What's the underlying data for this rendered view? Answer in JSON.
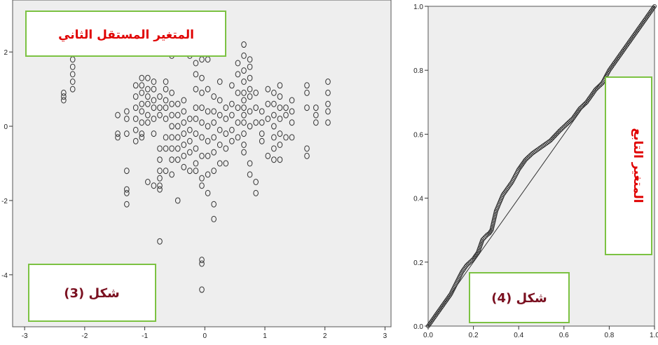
{
  "chart_data": [
    {
      "type": "scatter",
      "caption": "شكل (3)",
      "annotation": "المتغير المستقل الثاني",
      "xlim": [
        -3.2,
        3.1
      ],
      "ylim": [
        -5.4,
        3.4
      ],
      "xticks": [
        "-3",
        "-2",
        "-1",
        "0",
        "1",
        "2",
        "3"
      ],
      "yticks": [
        "2",
        "0",
        "-2",
        "-4"
      ],
      "xtick_values": [
        -3,
        -2,
        -1,
        0,
        1,
        2,
        3
      ],
      "ytick_values": [
        2,
        0,
        -2,
        -4
      ],
      "grid": false,
      "columns": [
        {
          "x": -2.35,
          "y": [
            0.9,
            0.8,
            0.7
          ]
        },
        {
          "x": -2.2,
          "y": [
            2.0,
            1.8,
            1.6,
            1.4,
            1.2,
            1.0
          ]
        },
        {
          "x": -1.45,
          "y": [
            0.3,
            -0.2,
            -0.3
          ]
        },
        {
          "x": -1.3,
          "y": [
            0.4,
            0.2,
            -0.2,
            -1.2,
            -1.7,
            -1.8,
            -2.1
          ]
        },
        {
          "x": -1.15,
          "y": [
            1.1,
            0.8,
            0.5,
            0.2,
            -0.1,
            -0.4
          ]
        },
        {
          "x": -1.05,
          "y": [
            1.3,
            1.1,
            0.9,
            0.6,
            0.4,
            0.1,
            -0.2,
            -0.3
          ]
        },
        {
          "x": -0.95,
          "y": [
            1.3,
            1.0,
            0.8,
            0.6,
            0.3,
            0.1,
            -1.5
          ]
        },
        {
          "x": -0.85,
          "y": [
            1.2,
            1.0,
            0.7,
            0.5,
            0.2,
            -0.2,
            -1.6
          ]
        },
        {
          "x": -0.75,
          "y": [
            0.8,
            0.5,
            0.3,
            -0.6,
            -0.9,
            -1.2,
            -1.4,
            -1.6,
            -1.7,
            -3.1
          ]
        },
        {
          "x": -0.65,
          "y": [
            1.2,
            1.0,
            0.7,
            0.5,
            0.2,
            -0.3,
            -0.6,
            -1.2
          ]
        },
        {
          "x": -0.55,
          "y": [
            1.9,
            0.9,
            0.6,
            0.3,
            0.0,
            -0.3,
            -0.6,
            -0.9,
            -1.3
          ]
        },
        {
          "x": -0.45,
          "y": [
            0.6,
            0.3,
            0.0,
            -0.3,
            -0.6,
            -0.9,
            -2.0
          ]
        },
        {
          "x": -0.35,
          "y": [
            0.7,
            0.4,
            0.1,
            -0.2,
            -0.5,
            -0.8,
            -1.1
          ]
        },
        {
          "x": -0.25,
          "y": [
            2.2,
            1.9,
            0.2,
            -0.1,
            -0.4,
            -0.7,
            -1.2
          ]
        },
        {
          "x": -0.15,
          "y": [
            1.7,
            1.4,
            1.0,
            0.5,
            0.2,
            -0.2,
            -0.6,
            -1.0,
            -1.2
          ]
        },
        {
          "x": -0.05,
          "y": [
            1.8,
            1.3,
            0.9,
            0.5,
            0.1,
            -0.3,
            -0.8,
            -1.4,
            -1.6,
            -3.6,
            -3.7,
            -4.4
          ]
        },
        {
          "x": 0.05,
          "y": [
            1.8,
            1.0,
            0.4,
            0.0,
            -0.4,
            -0.8,
            -1.3,
            -1.8
          ]
        },
        {
          "x": 0.15,
          "y": [
            0.8,
            0.4,
            0.1,
            -0.3,
            -0.7,
            -1.2,
            -2.1,
            -2.5
          ]
        },
        {
          "x": 0.25,
          "y": [
            1.2,
            0.7,
            0.3,
            -0.1,
            -0.5,
            -1.0
          ]
        },
        {
          "x": 0.35,
          "y": [
            0.5,
            0.2,
            -0.2,
            -0.6,
            -1.0
          ]
        },
        {
          "x": 0.45,
          "y": [
            1.1,
            0.6,
            0.3,
            -0.1,
            -0.4
          ]
        },
        {
          "x": 0.55,
          "y": [
            1.7,
            1.4,
            0.9,
            0.5,
            0.1,
            -0.3
          ]
        },
        {
          "x": 0.65,
          "y": [
            2.2,
            1.9,
            1.5,
            1.2,
            0.9,
            0.7,
            0.5,
            0.3,
            0.1,
            -0.2,
            -0.5,
            -0.7
          ]
        },
        {
          "x": 0.75,
          "y": [
            1.8,
            1.6,
            1.3,
            1.0,
            0.8,
            0.4,
            0.0,
            -1.0,
            -1.3
          ]
        },
        {
          "x": 0.85,
          "y": [
            0.9,
            0.5,
            0.1,
            -1.5,
            -1.8
          ]
        },
        {
          "x": 0.95,
          "y": [
            0.4,
            0.1,
            -0.2,
            -0.4
          ]
        },
        {
          "x": 1.05,
          "y": [
            1.0,
            0.6,
            0.2,
            -0.8
          ]
        },
        {
          "x": 1.15,
          "y": [
            0.9,
            0.6,
            0.3,
            0.0,
            -0.3,
            -0.6,
            -0.9
          ]
        },
        {
          "x": 1.25,
          "y": [
            1.1,
            0.8,
            0.5,
            0.2,
            -0.2,
            -0.5,
            -0.9
          ]
        },
        {
          "x": 1.35,
          "y": [
            0.5,
            0.3,
            -0.3
          ]
        },
        {
          "x": 1.45,
          "y": [
            0.7,
            0.4,
            0.1,
            -0.3
          ]
        },
        {
          "x": 1.7,
          "y": [
            1.1,
            0.9,
            0.5,
            -0.6,
            -0.8
          ]
        },
        {
          "x": 1.85,
          "y": [
            0.5,
            0.3,
            0.1
          ]
        },
        {
          "x": 2.05,
          "y": [
            1.2,
            0.9,
            0.6,
            0.4,
            0.1
          ]
        }
      ]
    },
    {
      "type": "line",
      "caption": "شكل (4)",
      "annotation": "المتغير التابع",
      "xlim": [
        0,
        1
      ],
      "ylim": [
        0,
        1
      ],
      "xticks": [
        "0.0",
        "0.2",
        "0.4",
        "0.6",
        "0.8",
        "1.0"
      ],
      "yticks": [
        "0.0",
        "0.2",
        "0.4",
        "0.6",
        "0.8",
        "1.0"
      ],
      "tick_values": [
        0,
        0.2,
        0.4,
        0.6,
        0.8,
        1.0
      ],
      "grid": false,
      "reference_line": [
        [
          0,
          0
        ],
        [
          1,
          1
        ]
      ],
      "observed": {
        "x": [
          0.0,
          0.05,
          0.1,
          0.15,
          0.17,
          0.2,
          0.21,
          0.22,
          0.24,
          0.26,
          0.27,
          0.28,
          0.3,
          0.33,
          0.37,
          0.4,
          0.43,
          0.46,
          0.5,
          0.54,
          0.58,
          0.61,
          0.64,
          0.67,
          0.7,
          0.74,
          0.77,
          0.8,
          0.84,
          0.88,
          0.92,
          0.96,
          1.0
        ],
        "y": [
          0.0,
          0.05,
          0.1,
          0.17,
          0.19,
          0.21,
          0.22,
          0.23,
          0.27,
          0.285,
          0.29,
          0.3,
          0.36,
          0.41,
          0.45,
          0.49,
          0.52,
          0.54,
          0.56,
          0.58,
          0.61,
          0.63,
          0.65,
          0.68,
          0.7,
          0.74,
          0.76,
          0.8,
          0.84,
          0.88,
          0.92,
          0.96,
          1.0
        ]
      }
    }
  ]
}
